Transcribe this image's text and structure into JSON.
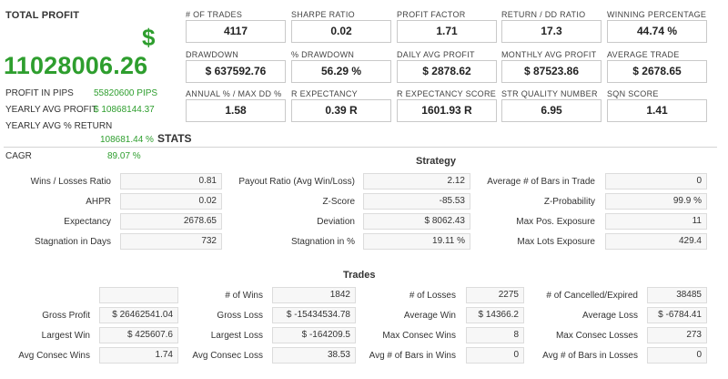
{
  "total_profit": {
    "label": "TOTAL PROFIT",
    "currency_symbol": "$",
    "value": "11028006.26",
    "rows": [
      {
        "label": "PROFIT IN PIPS",
        "value": "55820600 PIPS"
      },
      {
        "label": "YEARLY AVG PROFIT",
        "value": "$ 10868144.37"
      },
      {
        "label": "YEARLY AVG % RETURN",
        "value": "108681.44 %"
      },
      {
        "label": "CAGR",
        "value": "89.07 %"
      }
    ]
  },
  "metrics": [
    {
      "label": "# OF TRADES",
      "value": "4117"
    },
    {
      "label": "SHARPE RATIO",
      "value": "0.02"
    },
    {
      "label": "PROFIT FACTOR",
      "value": "1.71"
    },
    {
      "label": "RETURN / DD RATIO",
      "value": "17.3"
    },
    {
      "label": "WINNING PERCENTAGE",
      "value": "44.74 %"
    },
    {
      "label": "DRAWDOWN",
      "value": "$ 637592.76"
    },
    {
      "label": "% DRAWDOWN",
      "value": "56.29 %"
    },
    {
      "label": "DAILY AVG PROFIT",
      "value": "$ 2878.62"
    },
    {
      "label": "MONTHLY AVG PROFIT",
      "value": "$ 87523.86"
    },
    {
      "label": "AVERAGE TRADE",
      "value": "$ 2678.65"
    },
    {
      "label": "ANNUAL % / MAX DD %",
      "value": "1.58"
    },
    {
      "label": "R EXPECTANCY",
      "value": "0.39 R"
    },
    {
      "label": "R EXPECTANCY SCORE",
      "value": "1601.93 R"
    },
    {
      "label": "STR QUALITY NUMBER",
      "value": "6.95"
    },
    {
      "label": "SQN SCORE",
      "value": "1.41"
    }
  ],
  "stats_title": "STATS",
  "strategy": {
    "title": "Strategy",
    "rows": [
      [
        {
          "k": "Wins / Losses Ratio",
          "v": "0.81"
        },
        {
          "k": "Payout Ratio (Avg Win/Loss)",
          "v": "2.12"
        },
        {
          "k": "Average # of Bars in Trade",
          "v": "0"
        }
      ],
      [
        {
          "k": "AHPR",
          "v": "0.02"
        },
        {
          "k": "Z-Score",
          "v": "-85.53"
        },
        {
          "k": "Z-Probability",
          "v": "99.9 %"
        }
      ],
      [
        {
          "k": "Expectancy",
          "v": "2678.65"
        },
        {
          "k": "Deviation",
          "v": "$ 8062.43"
        },
        {
          "k": "Max Pos. Exposure",
          "v": "11"
        }
      ],
      [
        {
          "k": "Stagnation in Days",
          "v": "732"
        },
        {
          "k": "Stagnation in %",
          "v": "19.11 %"
        },
        {
          "k": "Max Lots Exposure",
          "v": "429.4"
        }
      ]
    ]
  },
  "trades": {
    "title": "Trades",
    "rows": [
      [
        {
          "k": "",
          "v": ""
        },
        {
          "k": "# of Wins",
          "v": "1842"
        },
        {
          "k": "# of Losses",
          "v": "2275"
        },
        {
          "k": "# of Cancelled/Expired",
          "v": "38485"
        }
      ],
      [
        {
          "k": "Gross Profit",
          "v": "$ 26462541.04"
        },
        {
          "k": "Gross Loss",
          "v": "$ -15434534.78"
        },
        {
          "k": "Average Win",
          "v": "$ 14366.2"
        },
        {
          "k": "Average Loss",
          "v": "$ -6784.41"
        }
      ],
      [
        {
          "k": "Largest Win",
          "v": "$ 425607.6"
        },
        {
          "k": "Largest Loss",
          "v": "$ -164209.5"
        },
        {
          "k": "Max Consec Wins",
          "v": "8"
        },
        {
          "k": "Max Consec Losses",
          "v": "273"
        }
      ],
      [
        {
          "k": "Avg Consec Wins",
          "v": "1.74"
        },
        {
          "k": "Avg Consec Loss",
          "v": "38.53"
        },
        {
          "k": "Avg # of Bars in Wins",
          "v": "0"
        },
        {
          "k": "Avg # of Bars in Losses",
          "v": "0"
        }
      ]
    ]
  }
}
